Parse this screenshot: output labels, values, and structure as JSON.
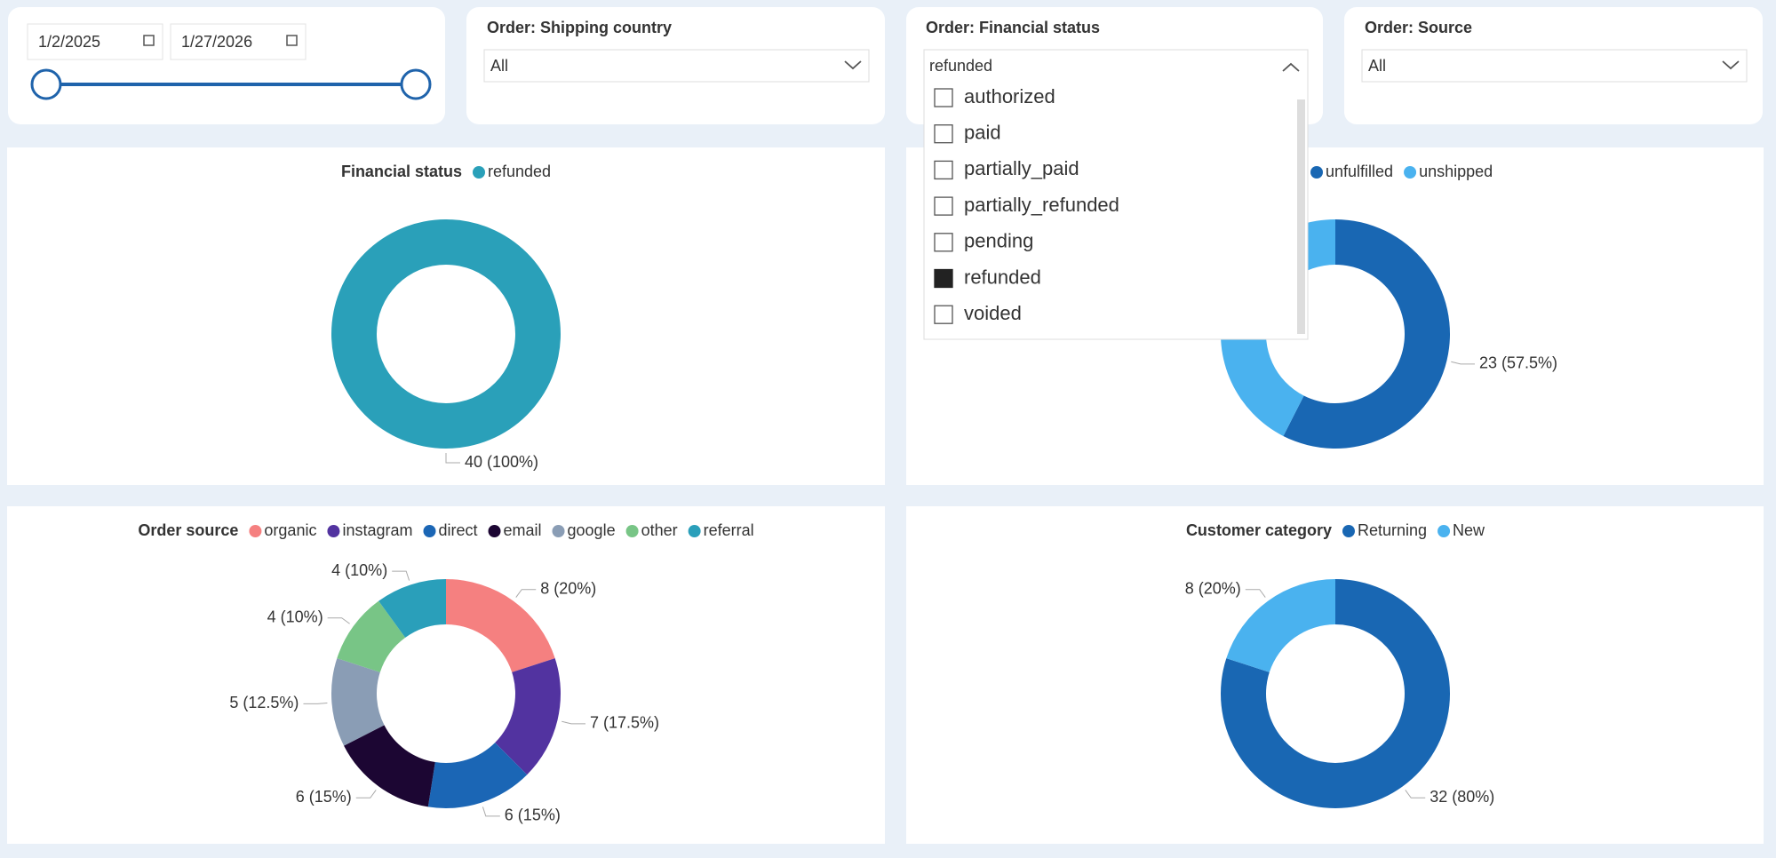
{
  "date_slicer": {
    "start": "1/2/2025",
    "end": "1/27/2026"
  },
  "slicers": [
    {
      "title": "Order: Shipping country",
      "value": "All"
    },
    {
      "title": "Order: Financial status",
      "value": "refunded",
      "options": [
        {
          "label": "authorized",
          "checked": false
        },
        {
          "label": "paid",
          "checked": false
        },
        {
          "label": "partially_paid",
          "checked": false
        },
        {
          "label": "partially_refunded",
          "checked": false
        },
        {
          "label": "pending",
          "checked": false
        },
        {
          "label": "refunded",
          "checked": true
        },
        {
          "label": "voided",
          "checked": false
        }
      ]
    },
    {
      "title": "Order: Source",
      "value": "All"
    }
  ],
  "chart_data": [
    {
      "type": "donut",
      "title": "Financial status",
      "categories": [
        "refunded"
      ],
      "values": [
        40
      ],
      "value_labels": [
        "40 (100%)"
      ],
      "colors": [
        "#2aa0b9"
      ]
    },
    {
      "type": "donut",
      "categories": [
        "unfulfilled",
        "unshipped"
      ],
      "values": [
        23,
        17
      ],
      "value_labels": [
        "23 (57.5%)",
        null
      ],
      "colors": [
        "#1967b3",
        "#4ab2ef"
      ]
    },
    {
      "type": "donut",
      "title": "Order source",
      "categories": [
        "organic",
        "instagram",
        "direct",
        "email",
        "google",
        "other",
        "referral"
      ],
      "values": [
        8,
        7,
        6,
        6,
        5,
        4,
        4
      ],
      "value_labels": [
        "8 (20%)",
        "7 (17.5%)",
        "6 (15%)",
        "6 (15%)",
        "5 (12.5%)",
        "4 (10%)",
        "4 (10%)"
      ],
      "colors": [
        "#f58080",
        "#5233a0",
        "#1b66b5",
        "#1c0633",
        "#8a9db5",
        "#78c586",
        "#2a9fba"
      ]
    },
    {
      "type": "donut",
      "title": "Customer category",
      "categories": [
        "Returning",
        "New"
      ],
      "values": [
        32,
        8
      ],
      "value_labels": [
        "32 (80%)",
        "8 (20%)"
      ],
      "colors": [
        "#1967b3",
        "#4ab2ef"
      ]
    }
  ]
}
